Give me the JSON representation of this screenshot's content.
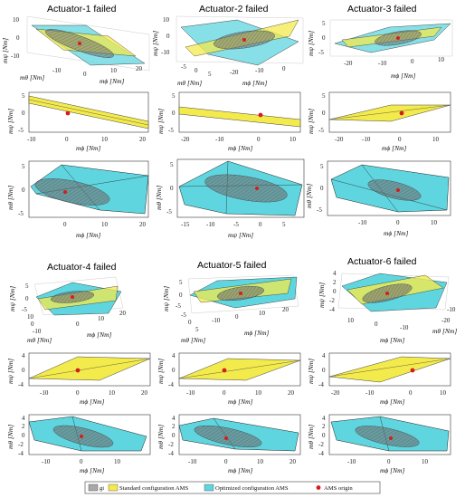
{
  "titles": {
    "a1": "Actuator-1 failed",
    "a2": "Actuator-2 failed",
    "a3": "Actuator-3 failed",
    "a4": "Actuator-4 failed",
    "a5": "Actuator-5 failed",
    "a6": "Actuator-6 failed"
  },
  "axis": {
    "m_theta": "mθ [Nm]",
    "m_phi": "mϕ [Nm]",
    "m_psi": "mψ [Nm]"
  },
  "ticks": {
    "top_yz": [
      "0",
      "-10"
    ],
    "a1_y2": [
      "5",
      "0",
      "-5"
    ],
    "a1_x2": [
      "-10",
      "0",
      "10",
      "20"
    ],
    "a1_y3": [
      "5",
      "0",
      "-5"
    ],
    "a1_x3": [
      "0",
      "10",
      "20"
    ],
    "a1_x1a": [
      "-10",
      "0",
      "10"
    ],
    "a1_x1b": [
      "0",
      "10",
      "20"
    ],
    "a1_y1": [
      "10",
      "0",
      "-10"
    ],
    "a2_y1": [
      "10",
      "0",
      "-10"
    ],
    "a2_x1a": [
      "-5",
      "0",
      "5"
    ],
    "a2_x1b": [
      "-20",
      "-10",
      "0"
    ],
    "a2_y2": [
      "5",
      "0",
      "-5"
    ],
    "a2_x2": [
      "-20",
      "-10",
      "0",
      "10"
    ],
    "a2_y3": [
      "5",
      "0",
      "-5"
    ],
    "a2_x3": [
      "-15",
      "-10",
      "-5",
      "0",
      "5"
    ],
    "a3_y1": [
      "5",
      "0",
      "-5"
    ],
    "a3_x1": [
      "-20",
      "-10",
      "0",
      "10"
    ],
    "a3_y2": [
      "5",
      "0",
      "-5"
    ],
    "a3_x2": [
      "-20",
      "-10",
      "0",
      "10"
    ],
    "a3_y3": [
      "5",
      "0",
      "-5"
    ],
    "a3_x3": [
      "-10",
      "0",
      "10"
    ],
    "a4_y1": [
      "5",
      "0",
      "-5"
    ],
    "a4_x1a": [
      "10",
      "0",
      "-10"
    ],
    "a4_x1b": [
      "0",
      "10",
      "20"
    ],
    "a5_y1": [
      "5",
      "0",
      "-5"
    ],
    "a5_x1a": [
      "-5",
      "0",
      "5"
    ],
    "a5_x1b": [
      "-10",
      "0",
      "10",
      "20"
    ],
    "a6_y1": [
      "4",
      "2",
      "0",
      "-2",
      "-4"
    ],
    "a6_x1a": [
      "-10",
      "-20"
    ],
    "a6_x1b": [
      "10",
      "0",
      "-10"
    ],
    "b_y": [
      "4",
      "2",
      "0",
      "-2",
      "-4"
    ],
    "a4_x2": [
      "-10",
      "0",
      "10",
      "20"
    ],
    "a5_x2": [
      "-10",
      "0",
      "10",
      "20"
    ],
    "a6_x2": [
      "-20",
      "-10",
      "0",
      "10"
    ],
    "a4_x3": [
      "-10",
      "0",
      "10"
    ],
    "a5_x3": [
      "-10",
      "0",
      "10",
      "20"
    ],
    "a6_x3": [
      "-10",
      "0",
      "10"
    ]
  },
  "legend": {
    "g_label": "gi",
    "standard_label": "Standard configuration AMS",
    "optimized_label": "Optimized configuration AMS",
    "origin_label": "AMS origin"
  },
  "colors": {
    "standard": "#f3ea4c",
    "optimized": "#5fd6df",
    "ellipse": "#6e6e6e",
    "origin": "#d41d1d"
  }
}
